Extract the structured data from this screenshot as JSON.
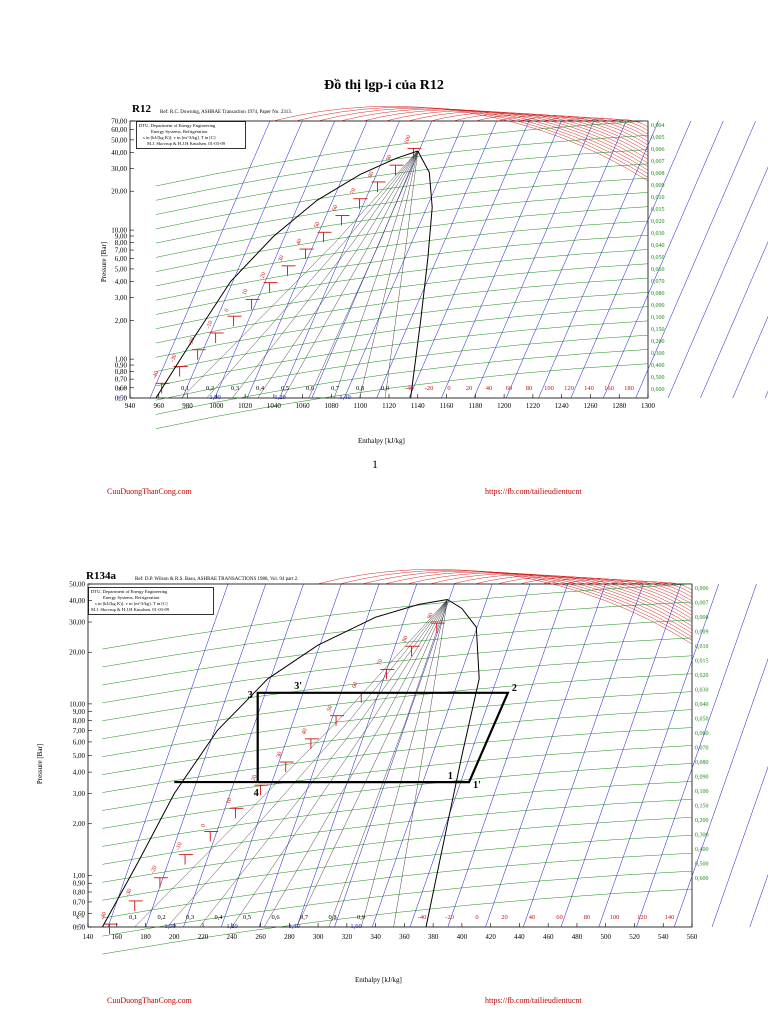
{
  "page_title": "Đồ thị lgp-i của R12",
  "page_number": "1",
  "footer": {
    "left": "CuuDuongThanCong.com",
    "right": "https://fb.com/tailieudientucnt"
  },
  "colors": {
    "red": "#d01010",
    "blue": "#1818c8",
    "green": "#1a8c1a",
    "black": "#000000",
    "footer": "#c00000"
  },
  "chart1": {
    "name": "R12",
    "ref": "Ref: R.C. Downing, ASHRAE Transaction 1974, Paper No. 2313.",
    "info": [
      "DTU, Department of Energy Engineering",
      "Energy Systems, Refrigeration",
      "s in [kJ/(kg K)], v in [m^3/kg], T in [C]",
      "M.J. Skovrup & H.J.H Knudsen. 01-03-09"
    ],
    "ylabel": "Pressure [Bar]",
    "xlabel": "Enthalpy [kJ/kg]"
  },
  "chart2": {
    "name": "R134a",
    "ref": "Ref: D.P. Wilson & R.S. Basu, ASHRAE TRANSACTIONS 1988, Vol. 94 part 2.",
    "info": [
      "DTU, Department of Energy Engineering",
      "Energy Systems, Refrigeration",
      "s in [kJ/(kg K)], v in [m^3/kg], T in [C]",
      "M.J. Skovrup & H.J.H Knudsen. 01-03-09"
    ],
    "ylabel": "Pressure [Bar]",
    "xlabel": "Enthalpy [kJ/kg]",
    "cycle_points": [
      "1",
      "1'",
      "2",
      "3",
      "3'",
      "4"
    ]
  },
  "chart_data": [
    {
      "type": "line",
      "title": "R12",
      "xlabel": "Enthalpy [kJ/kg]",
      "ylabel": "Pressure [Bar]",
      "xlim": [
        940,
        1300
      ],
      "ylim": [
        0.5,
        70
      ],
      "yscale": "log",
      "x_ticks": [
        "940",
        "960",
        "980",
        "1000",
        "1020",
        "1040",
        "1060",
        "1080",
        "1100",
        "1120",
        "1140",
        "1160",
        "1180",
        "1200",
        "1220",
        "1240",
        "1260",
        "1280",
        "1300"
      ],
      "y_ticks": [
        "70,00",
        "60,00",
        "50,00",
        "40,00",
        "30,00",
        "20,00",
        "10,00",
        "9,00",
        "8,00",
        "7,00",
        "6,00",
        "5,00",
        "4,00",
        "3,00",
        "2,00",
        "1,00",
        "0,90",
        "0,80",
        "0,70",
        "0,60",
        "0,50"
      ],
      "x_quality": {
        "label": "x =",
        "values": [
          "0,1",
          "0,2",
          "0,3",
          "0,4",
          "0,5",
          "0,6",
          "0,7",
          "0,8",
          "0,9"
        ]
      },
      "s_row": {
        "label": "s =",
        "values": [
          "1,00",
          "1,20",
          "1,40"
        ]
      },
      "temperatures_bottom": [
        "-40",
        "-20",
        "0",
        "20",
        "40",
        "60",
        "80",
        "100",
        "120",
        "140",
        "160",
        "180"
      ],
      "temperatures_liquid": [
        "-40",
        "-30",
        "-20",
        "-10",
        "0",
        "10",
        "20",
        "30",
        "40",
        "50",
        "60",
        "70",
        "80",
        "90",
        "100"
      ],
      "volumes": [
        "0,004",
        "0,005",
        "0,006",
        "0,007",
        "0,008",
        "0,009",
        "0,010",
        "0,015",
        "0,020",
        "0,030",
        "0,040",
        "0,050",
        "0,060",
        "0,070",
        "0,080",
        "0,090",
        "0,100",
        "0,150",
        "0,200",
        "0,300",
        "0,400",
        "0,500",
        "0,600"
      ],
      "critical_point": {
        "h": 1140,
        "p": 41
      }
    },
    {
      "type": "line",
      "title": "R134a",
      "xlabel": "Enthalpy [kJ/kg]",
      "ylabel": "Pressure [Bar]",
      "xlim": [
        140,
        560
      ],
      "ylim": [
        0.5,
        50
      ],
      "yscale": "log",
      "x_ticks": [
        "140",
        "160",
        "180",
        "200",
        "220",
        "240",
        "260",
        "280",
        "300",
        "320",
        "340",
        "360",
        "380",
        "400",
        "420",
        "440",
        "460",
        "480",
        "500",
        "520",
        "540",
        "560"
      ],
      "y_ticks": [
        "50,00",
        "40,00",
        "30,00",
        "20,00",
        "10,00",
        "9,00",
        "8,00",
        "7,00",
        "6,00",
        "5,00",
        "4,00",
        "3,00",
        "2,00",
        "1,00",
        "0,90",
        "0,80",
        "0,70",
        "0,60",
        "0,50"
      ],
      "x_quality": {
        "label": "x =",
        "values": [
          "0,1",
          "0,2",
          "0,3",
          "0,4",
          "0,5",
          "0,6",
          "0,7",
          "0,8",
          "0,9"
        ]
      },
      "s_row": {
        "label": "s =",
        "values": [
          "1,00",
          "1,20",
          "1,40",
          "1,60"
        ]
      },
      "temperatures_bottom": [
        "-40",
        "-20",
        "0",
        "20",
        "40",
        "60",
        "80",
        "100",
        "120",
        "140"
      ],
      "temperatures_liquid": [
        "-40",
        "-30",
        "-20",
        "-10",
        "0",
        "10",
        "20",
        "30",
        "40",
        "50",
        "60",
        "70",
        "80",
        "90"
      ],
      "volumes": [
        "0,006",
        "0,007",
        "0,008",
        "0,009",
        "0,010",
        "0,015",
        "0,020",
        "0,030",
        "0,040",
        "0,050",
        "0,060",
        "0,070",
        "0,080",
        "0,090",
        "0,100",
        "0,150",
        "0,200",
        "0,300",
        "0,400",
        "0,500",
        "0,600"
      ],
      "critical_point": {
        "h": 390,
        "p": 40.6
      },
      "cycle": {
        "points": [
          {
            "label": "1",
            "h": 400,
            "p": 3.5
          },
          {
            "label": "1'",
            "h": 405,
            "p": 3.5
          },
          {
            "label": "2",
            "h": 432,
            "p": 11.6
          },
          {
            "label": "3",
            "h": 258,
            "p": 11.6
          },
          {
            "label": "3'",
            "h": 282,
            "p": 11.6
          },
          {
            "label": "4",
            "h": 258,
            "p": 3.5
          }
        ]
      }
    }
  ]
}
